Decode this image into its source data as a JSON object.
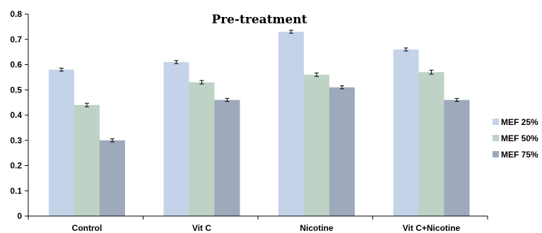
{
  "chart_data": {
    "type": "bar",
    "title": "Pre-treatment",
    "xlabel": "",
    "ylabel": "",
    "categories": [
      "Control",
      "Vit C",
      "Nicotine",
      "Vit C+Nicotine"
    ],
    "series": [
      {
        "name": "MEF 25%",
        "values": [
          0.58,
          0.61,
          0.73,
          0.66
        ],
        "error": [
          0.006,
          0.006,
          0.006,
          0.006
        ],
        "color": "#c5d3e9"
      },
      {
        "name": "MEF 50%",
        "values": [
          0.44,
          0.53,
          0.56,
          0.57
        ],
        "error": [
          0.007,
          0.007,
          0.007,
          0.008
        ],
        "color": "#bfd2c6"
      },
      {
        "name": "MEF 75%",
        "values": [
          0.3,
          0.46,
          0.51,
          0.46
        ],
        "error": [
          0.006,
          0.006,
          0.006,
          0.006
        ],
        "color": "#9ea9bc"
      }
    ],
    "ylim": [
      0,
      0.8
    ],
    "yticks": [
      0,
      0.1,
      0.2,
      0.3,
      0.4,
      0.5,
      0.6,
      0.7,
      0.8
    ],
    "ytick_labels": [
      "0",
      "0.1",
      "0.2",
      "0.3",
      "0.4",
      "0.5",
      "0.6",
      "0.7",
      "0.8"
    ],
    "grid": false,
    "legend_position": "right"
  }
}
